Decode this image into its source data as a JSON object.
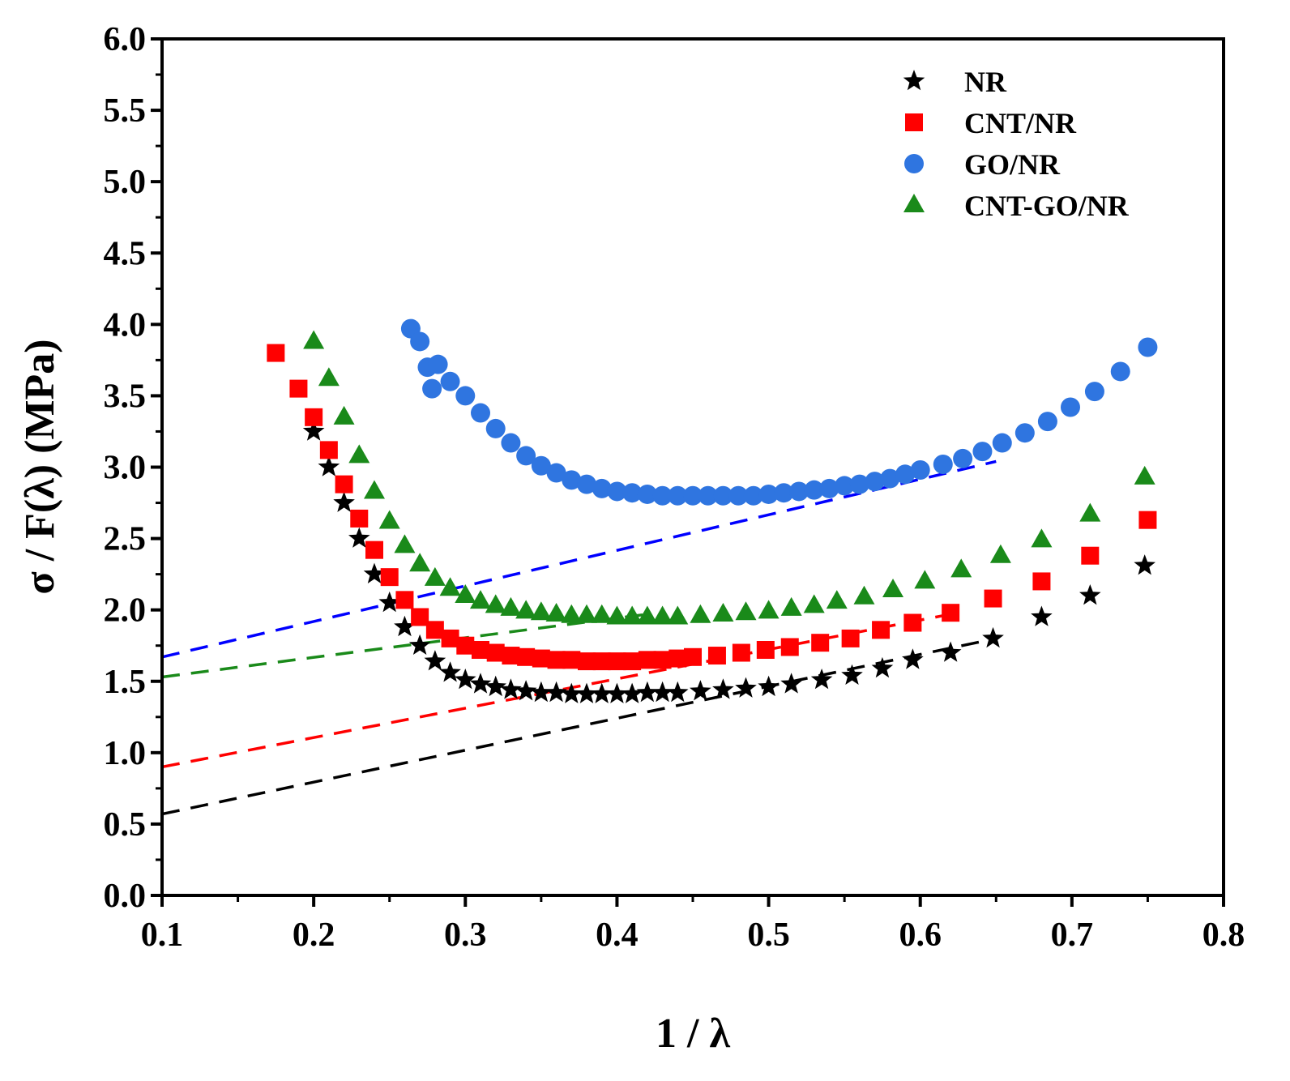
{
  "chart_data": {
    "type": "scatter",
    "title": "",
    "xlabel": "1 / λ",
    "ylabel": "σ / F(λ) (MPa)",
    "xlim": [
      0.1,
      0.8
    ],
    "ylim": [
      0.0,
      6.0
    ],
    "xticks": [
      "0.1",
      "0.2",
      "0.3",
      "0.4",
      "0.5",
      "0.6",
      "0.7",
      "0.8"
    ],
    "yticks": [
      "0.0",
      "0.5",
      "1.0",
      "1.5",
      "2.0",
      "2.5",
      "3.0",
      "3.5",
      "4.0",
      "4.5",
      "5.0",
      "5.5",
      "6.0"
    ],
    "grid": false,
    "legend_position": "top-right",
    "series": [
      {
        "name": "NR",
        "color": "#000000",
        "marker": "star",
        "x": [
          0.2,
          0.21,
          0.22,
          0.23,
          0.24,
          0.25,
          0.26,
          0.27,
          0.28,
          0.29,
          0.3,
          0.31,
          0.32,
          0.33,
          0.34,
          0.35,
          0.36,
          0.37,
          0.38,
          0.39,
          0.4,
          0.41,
          0.42,
          0.43,
          0.44,
          0.455,
          0.47,
          0.485,
          0.5,
          0.515,
          0.535,
          0.555,
          0.575,
          0.595,
          0.62,
          0.648,
          0.68,
          0.712,
          0.748
        ],
        "y": [
          3.25,
          3.0,
          2.75,
          2.5,
          2.25,
          2.05,
          1.88,
          1.75,
          1.64,
          1.56,
          1.51,
          1.48,
          1.46,
          1.44,
          1.43,
          1.42,
          1.42,
          1.41,
          1.41,
          1.41,
          1.41,
          1.41,
          1.42,
          1.42,
          1.42,
          1.43,
          1.44,
          1.45,
          1.46,
          1.48,
          1.51,
          1.54,
          1.59,
          1.65,
          1.7,
          1.8,
          1.95,
          2.1,
          2.31
        ]
      },
      {
        "name": "CNT/NR",
        "color": "#ff0000",
        "marker": "square",
        "x": [
          0.175,
          0.19,
          0.2,
          0.21,
          0.22,
          0.23,
          0.24,
          0.25,
          0.26,
          0.27,
          0.28,
          0.29,
          0.3,
          0.31,
          0.32,
          0.33,
          0.34,
          0.35,
          0.36,
          0.37,
          0.38,
          0.39,
          0.4,
          0.41,
          0.42,
          0.43,
          0.44,
          0.45,
          0.466,
          0.482,
          0.498,
          0.514,
          0.534,
          0.554,
          0.574,
          0.595,
          0.62,
          0.648,
          0.68,
          0.712,
          0.75
        ],
        "y": [
          3.8,
          3.55,
          3.35,
          3.12,
          2.88,
          2.64,
          2.42,
          2.23,
          2.07,
          1.95,
          1.86,
          1.8,
          1.75,
          1.72,
          1.7,
          1.68,
          1.67,
          1.66,
          1.65,
          1.65,
          1.64,
          1.64,
          1.64,
          1.64,
          1.65,
          1.65,
          1.66,
          1.67,
          1.68,
          1.7,
          1.72,
          1.74,
          1.77,
          1.8,
          1.86,
          1.91,
          1.98,
          2.08,
          2.2,
          2.38,
          2.63
        ]
      },
      {
        "name": "GO/NR",
        "color": "#2f75e0",
        "marker": "circle",
        "x": [
          0.264,
          0.27,
          0.275,
          0.278,
          0.282,
          0.29,
          0.3,
          0.31,
          0.32,
          0.33,
          0.34,
          0.35,
          0.36,
          0.37,
          0.38,
          0.39,
          0.4,
          0.41,
          0.42,
          0.43,
          0.44,
          0.45,
          0.46,
          0.47,
          0.48,
          0.49,
          0.5,
          0.51,
          0.52,
          0.53,
          0.54,
          0.55,
          0.56,
          0.57,
          0.58,
          0.59,
          0.6,
          0.615,
          0.628,
          0.641,
          0.654,
          0.669,
          0.684,
          0.699,
          0.715,
          0.732,
          0.75
        ],
        "y": [
          3.97,
          3.88,
          3.7,
          3.55,
          3.72,
          3.6,
          3.5,
          3.38,
          3.27,
          3.17,
          3.08,
          3.01,
          2.96,
          2.91,
          2.88,
          2.85,
          2.83,
          2.82,
          2.81,
          2.8,
          2.8,
          2.8,
          2.8,
          2.8,
          2.8,
          2.8,
          2.81,
          2.82,
          2.83,
          2.84,
          2.85,
          2.87,
          2.88,
          2.9,
          2.92,
          2.95,
          2.98,
          3.02,
          3.06,
          3.11,
          3.17,
          3.24,
          3.32,
          3.42,
          3.53,
          3.67,
          3.84
        ]
      },
      {
        "name": "CNT-GO/NR",
        "color": "#1a8a1a",
        "marker": "triangle",
        "x": [
          0.2,
          0.21,
          0.22,
          0.23,
          0.24,
          0.25,
          0.26,
          0.27,
          0.28,
          0.29,
          0.3,
          0.31,
          0.32,
          0.33,
          0.34,
          0.35,
          0.36,
          0.37,
          0.38,
          0.39,
          0.4,
          0.41,
          0.42,
          0.43,
          0.44,
          0.455,
          0.47,
          0.485,
          0.5,
          0.515,
          0.53,
          0.545,
          0.563,
          0.582,
          0.603,
          0.627,
          0.653,
          0.68,
          0.712,
          0.748
        ],
        "y": [
          3.88,
          3.62,
          3.35,
          3.08,
          2.83,
          2.62,
          2.45,
          2.32,
          2.22,
          2.15,
          2.1,
          2.06,
          2.03,
          2.01,
          1.99,
          1.98,
          1.97,
          1.96,
          1.96,
          1.96,
          1.95,
          1.95,
          1.95,
          1.95,
          1.95,
          1.96,
          1.97,
          1.98,
          1.99,
          2.01,
          2.03,
          2.06,
          2.09,
          2.14,
          2.2,
          2.28,
          2.38,
          2.49,
          2.67,
          2.93
        ]
      }
    ],
    "fit_lines": [
      {
        "series": "NR",
        "color": "#000000",
        "x": [
          0.1,
          0.65
        ],
        "y": [
          0.57,
          1.8
        ]
      },
      {
        "series": "CNT/NR",
        "color": "#ff0000",
        "x": [
          0.1,
          0.62
        ],
        "y": [
          0.9,
          1.97
        ]
      },
      {
        "series": "GO/NR",
        "color": "#0000ff",
        "x": [
          0.1,
          0.65
        ],
        "y": [
          1.67,
          3.04
        ]
      },
      {
        "series": "CNT-GO/NR",
        "color": "#1a8a1a",
        "x": [
          0.1,
          0.42
        ],
        "y": [
          1.53,
          1.97
        ]
      }
    ]
  }
}
